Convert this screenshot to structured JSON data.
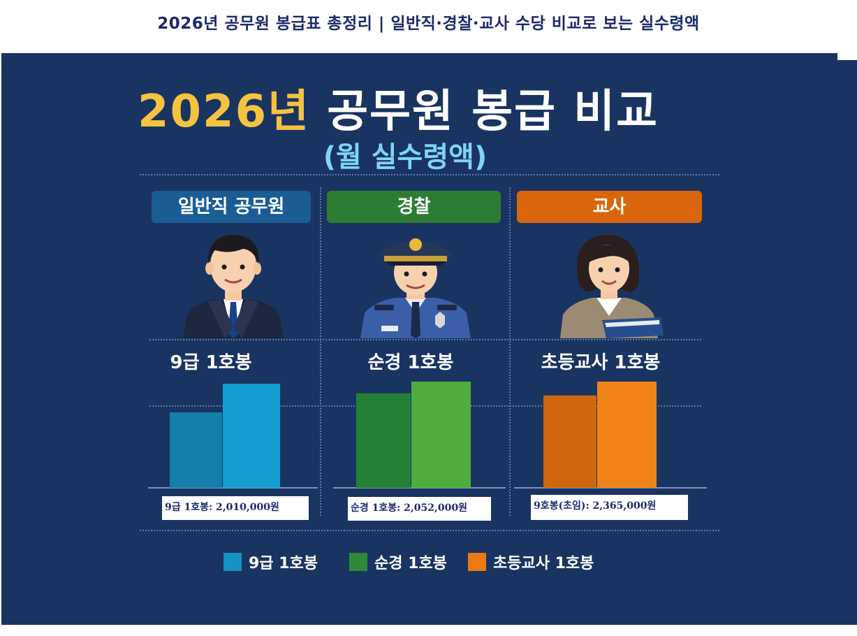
{
  "caption": "2026년 공무원 봉급표 총정리 | 일반직·경찰·교사 수당 비교로 보는 실수령액",
  "headline": {
    "year": "2026년",
    "rest": " 공무원 봉급 비교"
  },
  "subheadline": "(월 실수령액)",
  "columns": [
    {
      "tag": "일반직 공무원",
      "label": "9급 1호봉",
      "value_text": "9급 1호봉: 2,010,000원",
      "icon": "civil-servant-icon",
      "tag_color": "#1a5d95"
    },
    {
      "tag": "경찰",
      "label": "순경 1호봉",
      "value_text": "순경 1호봉: 2,052,000원",
      "icon": "police-officer-icon",
      "tag_color": "#2c7d33"
    },
    {
      "tag": "교사",
      "label": "초등교사 1호봉",
      "value_text": "9호봉(초임): 2,365,000원",
      "icon": "teacher-icon",
      "tag_color": "#d9660d"
    }
  ],
  "legend": [
    {
      "label": "9급 1호봉",
      "color": "#1493c4"
    },
    {
      "label": "순경 1호봉",
      "color": "#2e8a36"
    },
    {
      "label": "초등교사 1호봉",
      "color": "#ea7a14"
    }
  ],
  "chart_data": {
    "type": "bar",
    "categories": [
      "9급 1호봉",
      "순경 1호봉",
      "초등교사 1호봉"
    ],
    "series": [
      {
        "values": [
          0.71,
          0.89,
          0.87
        ]
      },
      {
        "values": [
          0.98,
          1.0,
          1.0
        ]
      }
    ],
    "colors": [
      [
        "#137fab",
        "#129fcf"
      ],
      [
        "#238034",
        "#4fae3b"
      ],
      [
        "#d0660e",
        "#ef8318"
      ]
    ],
    "xlabel": "",
    "ylabel": "",
    "grid": true
  }
}
